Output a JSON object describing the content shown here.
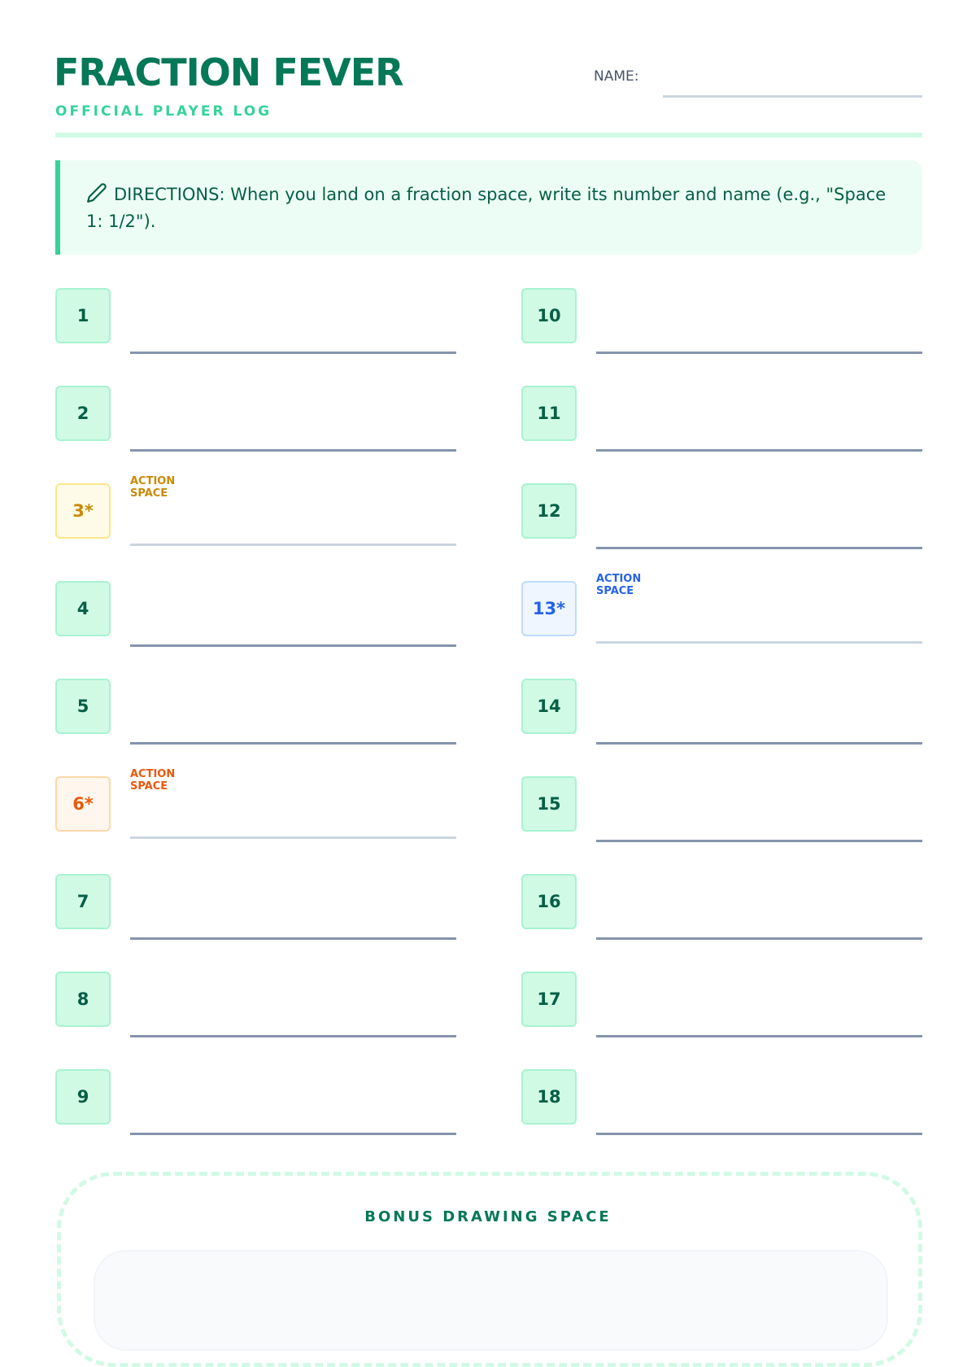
{
  "header": {
    "title": "FRACTION FEVER",
    "subtitle": "OFFICIAL PLAYER LOG",
    "name_label": "NAME:",
    "name_value": ""
  },
  "directions": {
    "icon": "pencil-icon",
    "text": "DIRECTIONS: When you land on a fraction space, write its number and name (e.g., \"Space 1: 1/2\")."
  },
  "colors": {
    "brand": "#047857",
    "accent": "#34d399",
    "action_yellow": "#ca8a04",
    "action_blue": "#2563eb",
    "action_orange": "#ea580c"
  },
  "spaces": [
    {
      "number": "1"
    },
    {
      "number": "2"
    },
    {
      "number": "3*",
      "label": "ACTION SPACE",
      "variant": "yellow"
    },
    {
      "number": "4"
    },
    {
      "number": "5"
    },
    {
      "number": "6*",
      "label": "ACTION SPACE",
      "variant": "orange"
    },
    {
      "number": "7"
    },
    {
      "number": "8"
    },
    {
      "number": "9"
    },
    {
      "number": "10"
    },
    {
      "number": "11"
    },
    {
      "number": "12"
    },
    {
      "number": "13*",
      "label": "ACTION SPACE",
      "variant": "blue"
    },
    {
      "number": "14"
    },
    {
      "number": "15"
    },
    {
      "number": "16"
    },
    {
      "number": "17"
    },
    {
      "number": "18"
    }
  ],
  "bonus": {
    "title": "BONUS DRAWING SPACE"
  }
}
